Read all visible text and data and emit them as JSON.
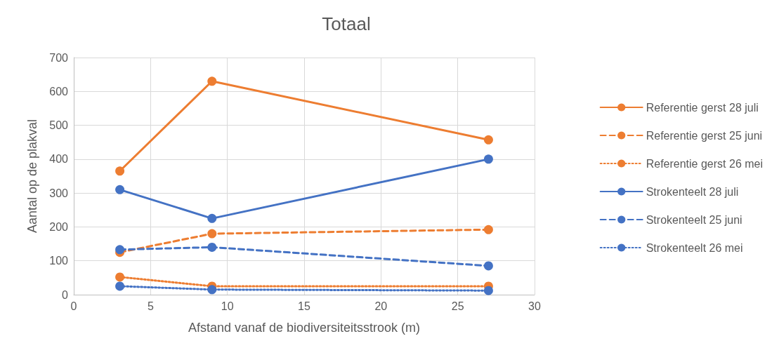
{
  "chart_data": {
    "type": "line",
    "title": "Totaal",
    "xlabel": "Afstand vanaf de biodiversiteitsstrook (m)",
    "ylabel": "Aantal op de plakval",
    "x": [
      3,
      9,
      27
    ],
    "xlim": [
      0,
      30
    ],
    "xticks": [
      0,
      5,
      10,
      15,
      20,
      25,
      30
    ],
    "ylim": [
      0,
      700
    ],
    "yticks": [
      0,
      100,
      200,
      300,
      400,
      500,
      600,
      700
    ],
    "grid": true,
    "legend": "right",
    "marker": "circle",
    "series": [
      {
        "name": "Referentie gerst 28 juli",
        "color": "#ed7d31",
        "line_style": "solid",
        "values": [
          365,
          630,
          457
        ]
      },
      {
        "name": "Referentie gerst 25 juni",
        "color": "#ed7d31",
        "line_style": "dashed",
        "values": [
          125,
          180,
          192
        ]
      },
      {
        "name": "Referentie gerst 26 mei",
        "color": "#ed7d31",
        "line_style": "dotted",
        "values": [
          52,
          25,
          25
        ]
      },
      {
        "name": "Strokenteelt 28 juli",
        "color": "#4472c4",
        "line_style": "solid",
        "values": [
          310,
          225,
          400
        ]
      },
      {
        "name": "Strokenteelt 25 juni",
        "color": "#4472c4",
        "line_style": "dashed",
        "values": [
          133,
          140,
          85
        ]
      },
      {
        "name": "Strokenteelt 26 mei",
        "color": "#4472c4",
        "line_style": "dotted",
        "values": [
          25,
          15,
          12
        ]
      }
    ]
  }
}
